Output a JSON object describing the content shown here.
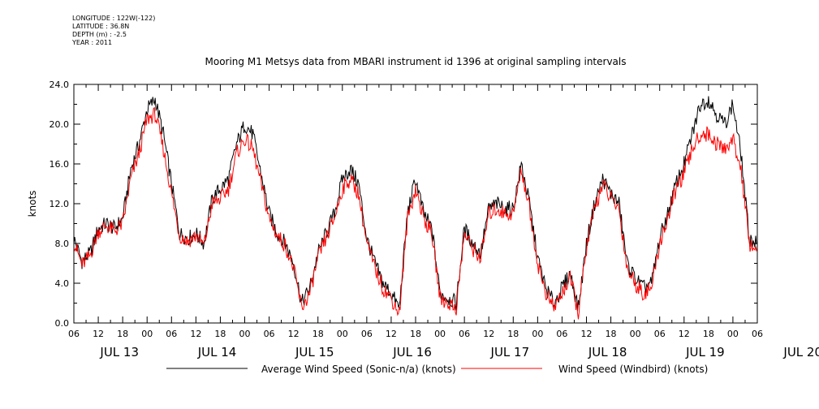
{
  "meta": {
    "longitude": "LONGITUDE : 122W(-122)",
    "latitude": "LATITUDE : 36.8N",
    "depth": "DEPTH (m) : -2.5",
    "year": "YEAR : 2011"
  },
  "chart_data": {
    "type": "line",
    "title": "Mooring M1 Metsys data from MBARI instrument id 1396 at original sampling intervals",
    "xlabel": "",
    "ylabel": "knots",
    "ylim": [
      0,
      24
    ],
    "y_ticks": [
      "0.0",
      "4.0",
      "8.0",
      "12.0",
      "16.0",
      "20.0",
      "24.0"
    ],
    "x_range_hours": [
      0,
      168
    ],
    "x_hour_ticks": [
      "06",
      "12",
      "18",
      "00",
      "06",
      "12",
      "18",
      "00",
      "06",
      "12",
      "18",
      "00",
      "06",
      "12",
      "18",
      "00",
      "06",
      "12",
      "18",
      "00",
      "06",
      "12",
      "18",
      "00",
      "06",
      "12",
      "18",
      "00",
      "06"
    ],
    "x_day_labels": [
      "JUL 13",
      "JUL 14",
      "JUL 15",
      "JUL 16",
      "JUL 17",
      "JUL 18",
      "JUL 19",
      "JUL 20"
    ],
    "legend_position": "bottom",
    "x_unit_note": "x = hours since JUL 13 06:00",
    "series": [
      {
        "name": "Average Wind Speed (Sonic-n/a) (knots)",
        "color": "#000000",
        "x": [
          0,
          2,
          4,
          6,
          8,
          10,
          12,
          14,
          16,
          18,
          20,
          22,
          24,
          26,
          28,
          30,
          32,
          34,
          36,
          38,
          40,
          42,
          44,
          46,
          48,
          50,
          52,
          54,
          56,
          58,
          60,
          62,
          64,
          66,
          68,
          70,
          72,
          74,
          76,
          78,
          80,
          82,
          84,
          86,
          88,
          90,
          92,
          94,
          96,
          98,
          100,
          102,
          104,
          106,
          108,
          110,
          112,
          114,
          116,
          118,
          120,
          122,
          124,
          126,
          128,
          130,
          132,
          134,
          136,
          138,
          140,
          142,
          144,
          146,
          148,
          150,
          152,
          154,
          156,
          158,
          160,
          162,
          164,
          166,
          168
        ],
        "values": [
          8.5,
          6.2,
          7.0,
          9.5,
          10.0,
          9.5,
          10.5,
          15.5,
          18.0,
          21.5,
          22.5,
          19.0,
          14.0,
          9.0,
          8.5,
          9.0,
          8.0,
          12.5,
          13.5,
          14.5,
          18.0,
          20.0,
          19.0,
          15.0,
          11.0,
          9.0,
          8.0,
          6.0,
          2.0,
          3.5,
          7.0,
          9.0,
          11.0,
          14.5,
          15.5,
          14.0,
          8.5,
          6.0,
          4.0,
          3.0,
          1.5,
          11.0,
          14.5,
          11.0,
          9.5,
          3.0,
          2.5,
          2.0,
          9.5,
          8.0,
          7.0,
          11.5,
          12.0,
          11.5,
          11.5,
          16.0,
          12.0,
          6.5,
          3.5,
          2.0,
          3.5,
          5.0,
          1.5,
          8.0,
          12.0,
          14.5,
          13.0,
          12.0,
          6.0,
          4.5,
          3.5,
          4.0,
          8.5,
          11.0,
          14.0,
          16.0,
          19.0,
          22.0,
          22.5,
          21.0,
          20.0,
          22.0,
          17.0,
          8.5,
          8.0
        ]
      },
      {
        "name": "Wind Speed (Windbird) (knots)",
        "color": "#ff0000",
        "x": [
          0,
          2,
          4,
          6,
          8,
          10,
          12,
          14,
          16,
          18,
          20,
          22,
          24,
          26,
          28,
          30,
          32,
          34,
          36,
          38,
          40,
          42,
          44,
          46,
          48,
          50,
          52,
          54,
          56,
          58,
          60,
          62,
          64,
          66,
          68,
          70,
          72,
          74,
          76,
          78,
          80,
          82,
          84,
          86,
          88,
          90,
          92,
          94,
          96,
          98,
          100,
          102,
          104,
          106,
          108,
          110,
          112,
          114,
          116,
          118,
          120,
          122,
          124,
          126,
          128,
          130,
          132,
          134,
          136,
          138,
          140,
          142,
          144,
          146,
          148,
          150,
          152,
          154,
          156,
          158,
          160,
          162,
          164,
          166,
          168
        ],
        "values": [
          8.2,
          5.8,
          6.8,
          9.2,
          9.8,
          9.2,
          10.0,
          14.5,
          17.0,
          20.5,
          21.0,
          17.5,
          13.0,
          8.8,
          8.2,
          8.8,
          7.8,
          12.0,
          12.5,
          13.5,
          17.0,
          18.5,
          17.5,
          14.0,
          10.5,
          8.8,
          7.8,
          5.5,
          1.5,
          3.0,
          6.5,
          8.5,
          10.5,
          13.5,
          14.5,
          13.0,
          8.0,
          5.5,
          3.5,
          2.5,
          1.0,
          10.5,
          13.5,
          10.5,
          9.0,
          2.5,
          2.0,
          1.5,
          9.0,
          7.5,
          6.5,
          11.0,
          11.5,
          11.0,
          11.0,
          15.5,
          11.5,
          6.0,
          3.0,
          1.5,
          3.0,
          4.5,
          1.0,
          7.5,
          11.5,
          14.0,
          12.5,
          11.5,
          5.5,
          4.0,
          3.0,
          3.5,
          8.0,
          10.5,
          13.5,
          15.0,
          17.5,
          19.0,
          19.0,
          18.0,
          17.5,
          18.5,
          15.5,
          8.0,
          7.5
        ]
      }
    ]
  }
}
